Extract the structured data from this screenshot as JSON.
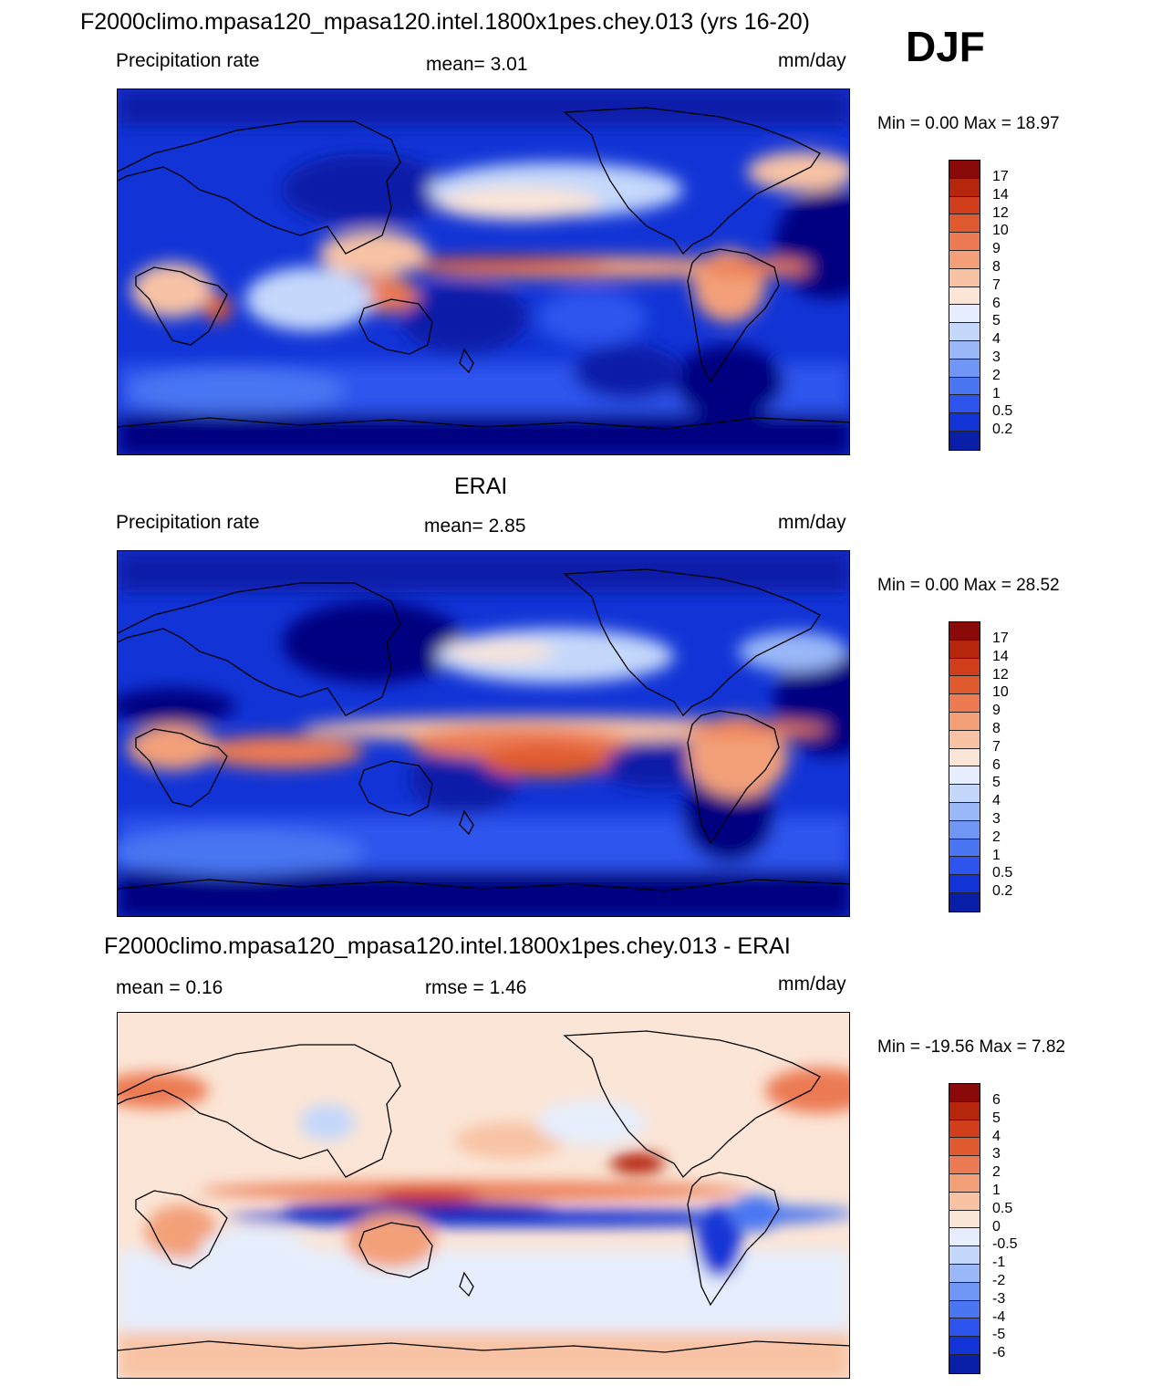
{
  "header": {
    "title": "F2000climo.mpasa120_mpasa120.intel.1800x1pes.chey.013 (yrs 16-20)",
    "season": "DJF"
  },
  "colors": {
    "precip_levels": [
      "#000080",
      "#0a1fa8",
      "#1234d6",
      "#2d55ee",
      "#4a76f2",
      "#7097f5",
      "#9ab8f8",
      "#c4d8fb",
      "#e6eefd",
      "#fbe5d6",
      "#f8c3a4",
      "#f3a079",
      "#ec7a52",
      "#e05a2f",
      "#d03e1c",
      "#b5260c",
      "#8a0a0a"
    ],
    "diff_levels": [
      "#000080",
      "#0a1fa8",
      "#1234d6",
      "#2d55ee",
      "#4a76f2",
      "#7097f5",
      "#9ab8f8",
      "#c4d8fb",
      "#e6eefd",
      "#fbe5d6",
      "#f8c3a4",
      "#f3a079",
      "#ec7a52",
      "#e05a2f",
      "#d03e1c",
      "#b5260c",
      "#8a0a0a"
    ]
  },
  "panels": [
    {
      "name": "model",
      "title": "",
      "left_label": "Precipitation rate",
      "center_label": "mean=   3.01",
      "units": "mm/day",
      "minmax": "Min =    0.00 Max =  18.97",
      "colorbar_labels": [
        "17",
        "14",
        "12",
        "10",
        "9",
        "8",
        "7",
        "6",
        "5",
        "4",
        "3",
        "2",
        "1",
        "0.5",
        "0.2"
      ]
    },
    {
      "name": "obs",
      "title": "ERAI",
      "left_label": "Precipitation rate",
      "center_label": "mean=   2.85",
      "units": "mm/day",
      "minmax": "Min =    0.00 Max =  28.52",
      "colorbar_labels": [
        "17",
        "14",
        "12",
        "10",
        "9",
        "8",
        "7",
        "6",
        "5",
        "4",
        "3",
        "2",
        "1",
        "0.5",
        "0.2"
      ]
    },
    {
      "name": "diff",
      "title": "F2000climo.mpasa120_mpasa120.intel.1800x1pes.chey.013 - ERAI",
      "left_label": "mean =   0.16",
      "center_label": "rmse =   1.46",
      "units": "mm/day",
      "minmax": "Min = -19.56 Max =   7.82",
      "colorbar_labels": [
        "6",
        "5",
        "4",
        "3",
        "2",
        "1",
        "0.5",
        "0",
        "-0.5",
        "-1",
        "-2",
        "-3",
        "-4",
        "-5",
        "-6"
      ]
    }
  ]
}
